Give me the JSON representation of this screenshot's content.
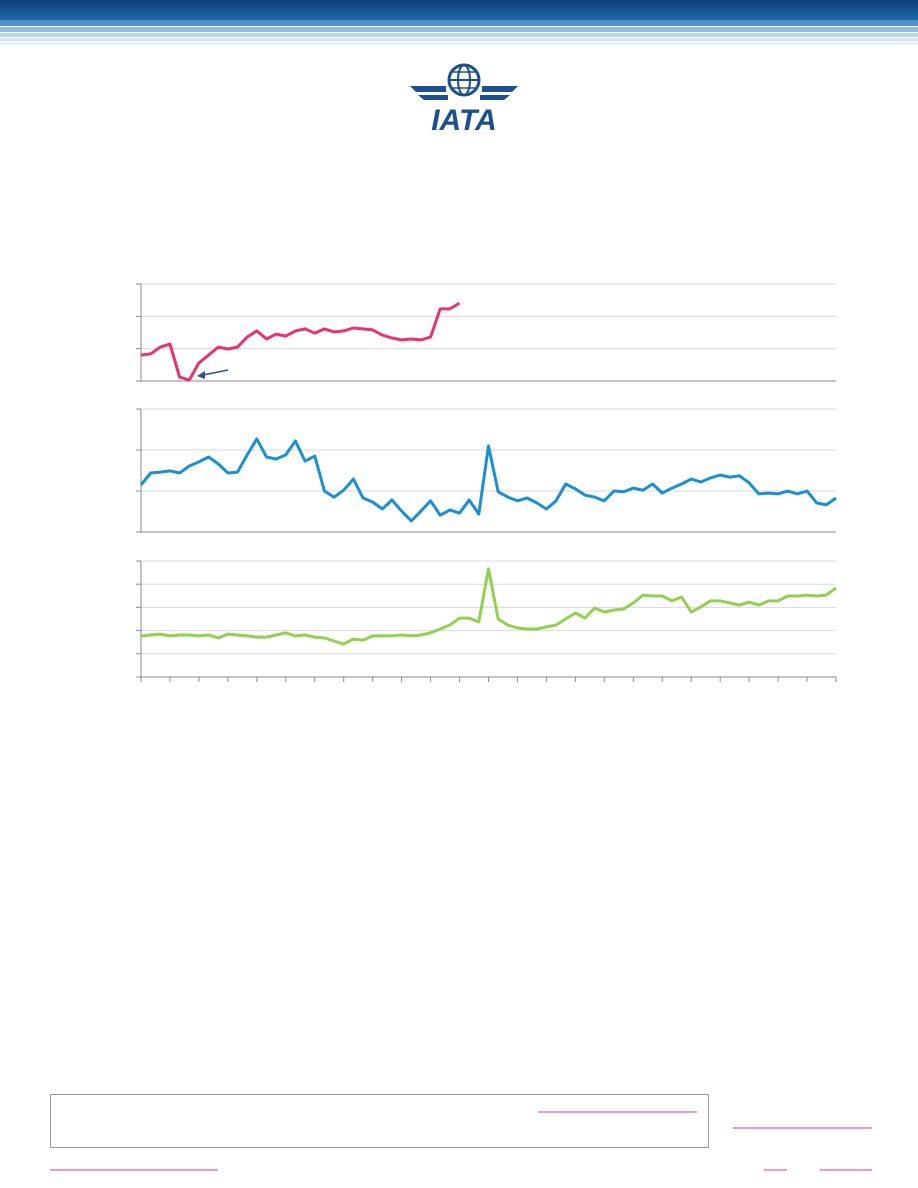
{
  "logo": {
    "text": "IATA"
  },
  "chart_data": [
    {
      "type": "line",
      "xlim": [
        0,
        72
      ],
      "ylim": [
        0,
        3
      ],
      "yticks": [
        0,
        1,
        2,
        3
      ],
      "grid": true,
      "x": [
        0,
        1,
        2,
        3,
        4,
        5,
        6,
        7,
        8,
        9,
        10,
        11,
        12,
        13,
        14,
        15,
        16,
        17,
        18,
        19,
        20,
        21,
        22,
        23,
        24,
        25,
        26,
        27,
        28,
        29,
        30,
        31,
        32,
        33
      ],
      "series": [
        {
          "color": "#e8336e",
          "values": [
            0.8,
            0.84,
            1.05,
            1.14,
            0.12,
            0.03,
            0.56,
            0.8,
            1.05,
            0.99,
            1.05,
            1.36,
            1.55,
            1.3,
            1.45,
            1.39,
            1.55,
            1.61,
            1.48,
            1.61,
            1.52,
            1.55,
            1.64,
            1.61,
            1.58,
            1.42,
            1.33,
            1.27,
            1.3,
            1.27,
            1.36,
            2.23,
            2.23,
            2.41
          ]
        }
      ]
    },
    {
      "type": "line",
      "xlim": [
        0,
        72
      ],
      "ylim": [
        0,
        3
      ],
      "yticks": [
        0,
        1,
        2,
        3
      ],
      "grid": true,
      "x": [
        0,
        1,
        2,
        3,
        4,
        5,
        6,
        7,
        8,
        9,
        10,
        11,
        12,
        13,
        14,
        15,
        16,
        17,
        18,
        19,
        20,
        21,
        22,
        23,
        24,
        25,
        26,
        27,
        28,
        29,
        30,
        31,
        32,
        33,
        34,
        35,
        36,
        37,
        38,
        39,
        40,
        41,
        42,
        43,
        44,
        45,
        46,
        47,
        48,
        49,
        50,
        51,
        52,
        53,
        54,
        55,
        56,
        57,
        58,
        59,
        60,
        61,
        62,
        63,
        64,
        65,
        66,
        67,
        68,
        69,
        70,
        71,
        72
      ],
      "series": [
        {
          "color": "#1a8fd6",
          "values": [
            1.15,
            1.44,
            1.46,
            1.49,
            1.44,
            1.61,
            1.71,
            1.83,
            1.66,
            1.44,
            1.46,
            1.88,
            2.27,
            1.83,
            1.78,
            1.88,
            2.22,
            1.73,
            1.85,
            1.0,
            0.85,
            1.02,
            1.29,
            0.83,
            0.73,
            0.56,
            0.78,
            0.51,
            0.27,
            0.51,
            0.76,
            0.41,
            0.54,
            0.46,
            0.78,
            0.44,
            2.1,
            0.98,
            0.85,
            0.76,
            0.83,
            0.71,
            0.56,
            0.76,
            1.17,
            1.05,
            0.9,
            0.85,
            0.76,
            1.0,
            0.98,
            1.07,
            1.02,
            1.17,
            0.95,
            1.07,
            1.17,
            1.29,
            1.22,
            1.32,
            1.39,
            1.34,
            1.37,
            1.2,
            0.93,
            0.95,
            0.93,
            1.0,
            0.93,
            1.0,
            0.71,
            0.66,
            0.83
          ]
        }
      ]
    },
    {
      "type": "line",
      "xlim": [
        0,
        72
      ],
      "xticks": [
        0,
        3,
        6,
        9,
        12,
        15,
        18,
        21,
        24,
        27,
        30,
        33,
        36,
        39,
        42,
        45,
        48,
        51,
        54,
        57,
        60,
        63,
        66,
        69,
        72
      ],
      "ylim": [
        0,
        5
      ],
      "yticks": [
        0,
        1,
        2,
        3,
        4,
        5
      ],
      "grid": true,
      "x": [
        0,
        1,
        2,
        3,
        4,
        5,
        6,
        7,
        8,
        9,
        10,
        11,
        12,
        13,
        14,
        15,
        16,
        17,
        18,
        19,
        20,
        21,
        22,
        23,
        24,
        25,
        26,
        27,
        28,
        29,
        30,
        31,
        32,
        33,
        34,
        35,
        36,
        37,
        38,
        39,
        40,
        41,
        42,
        43,
        44,
        45,
        46,
        47,
        48,
        49,
        50,
        51,
        52,
        53,
        54,
        55,
        56,
        57,
        58,
        59,
        60,
        61,
        62,
        63,
        64,
        65,
        66,
        67,
        68,
        69,
        70,
        71,
        72
      ],
      "series": [
        {
          "color": "#92d050",
          "values": [
            1.77,
            1.81,
            1.85,
            1.77,
            1.81,
            1.81,
            1.77,
            1.81,
            1.68,
            1.85,
            1.81,
            1.77,
            1.72,
            1.72,
            1.81,
            1.9,
            1.77,
            1.81,
            1.72,
            1.68,
            1.55,
            1.42,
            1.64,
            1.59,
            1.77,
            1.77,
            1.77,
            1.81,
            1.77,
            1.81,
            1.9,
            2.07,
            2.24,
            2.54,
            2.54,
            2.37,
            4.66,
            2.5,
            2.24,
            2.11,
            2.07,
            2.07,
            2.16,
            2.24,
            2.5,
            2.76,
            2.54,
            2.97,
            2.8,
            2.89,
            2.93,
            3.19,
            3.53,
            3.49,
            3.49,
            3.28,
            3.45,
            2.8,
            3.02,
            3.28,
            3.28,
            3.19,
            3.1,
            3.23,
            3.1,
            3.28,
            3.28,
            3.49,
            3.49,
            3.53,
            3.49,
            3.53,
            3.84
          ]
        }
      ]
    }
  ]
}
